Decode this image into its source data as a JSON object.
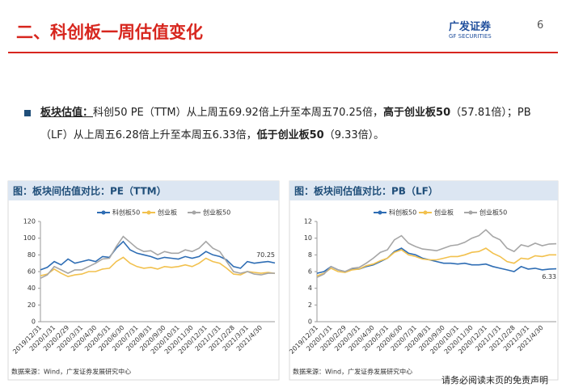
{
  "header": {
    "title": "二、科创板一周估值变化",
    "logo_cn": "广发证券",
    "logo_en": "GF SECURITIES",
    "page": "6"
  },
  "bullet": {
    "label": "板块估值：",
    "parts": [
      "科创50 PE（TTM）从上周五69.92倍上升至本周五70.25倍，",
      "高于创业板50",
      "（57.81倍）；PB（LF）从上周五6.28倍上升至本周五6.33倍，",
      "低于创业板50",
      "（9.33倍）。"
    ]
  },
  "chart_data": [
    {
      "type": "line",
      "title": "图：板块间估值对比：PE（TTM）",
      "source": "数据来源：Wind，广发证券发展研究中心",
      "annotation": "70.25",
      "categories": [
        "2019/12/31",
        null,
        "2020/1/31",
        null,
        "2020/2/29",
        null,
        "2020/3/31",
        null,
        "2020/4/30",
        null,
        "2020/5/31",
        null,
        "2020/6/30",
        null,
        "2020/7/31",
        null,
        "2020/8/31",
        null,
        "2020/9/30",
        null,
        "2020/10/31",
        null,
        "2020/11/30",
        null,
        "2020/12/31",
        null,
        "2021/1/31",
        null,
        "2021/2/28",
        null,
        "2021/3/31",
        null,
        "2021/4/30",
        null,
        null
      ],
      "ylim": [
        0,
        120
      ],
      "yticks": [
        0,
        20,
        40,
        60,
        80,
        100,
        120
      ],
      "series": [
        {
          "name": "科创板50",
          "color": "#2e6db4",
          "values": [
            62,
            65,
            72,
            68,
            75,
            70,
            72,
            74,
            72,
            78,
            77,
            88,
            96,
            86,
            82,
            80,
            78,
            75,
            77,
            76,
            75,
            78,
            76,
            78,
            84,
            80,
            78,
            74,
            66,
            64,
            72,
            70,
            71,
            72,
            70.25
          ]
        },
        {
          "name": "创业板",
          "color": "#f2c14e",
          "values": [
            55,
            57,
            63,
            58,
            54,
            56,
            57,
            60,
            60,
            63,
            64,
            72,
            77,
            70,
            66,
            64,
            65,
            63,
            66,
            65,
            66,
            68,
            66,
            70,
            76,
            72,
            70,
            64,
            57,
            56,
            60,
            59,
            58,
            59,
            57.81
          ]
        },
        {
          "name": "创业板50",
          "color": "#a6a6a6",
          "values": [
            52,
            56,
            66,
            62,
            58,
            62,
            62,
            66,
            70,
            75,
            76,
            90,
            102,
            95,
            88,
            84,
            85,
            80,
            84,
            82,
            82,
            86,
            84,
            88,
            96,
            88,
            84,
            72,
            60,
            58,
            60,
            57,
            56,
            58,
            58
          ]
        }
      ]
    },
    {
      "type": "line",
      "title": "图：板块间估值对比：PB（LF）",
      "source": "数据来源：Wind，广发证券发展研究中心",
      "annotation": "6.33",
      "categories": [
        "2019/12/31",
        null,
        "2020/1/31",
        null,
        "2020/2/29",
        null,
        "2020/3/31",
        null,
        "2020/4/30",
        null,
        "2020/5/31",
        null,
        "2020/6/30",
        null,
        "2020/7/31",
        null,
        "2020/8/31",
        null,
        "2020/9/30",
        null,
        "2020/10/31",
        null,
        "2020/11/30",
        null,
        "2020/12/31",
        null,
        "2021/1/31",
        null,
        "2021/2/28",
        null,
        "2021/3/31",
        null,
        "2021/4/30",
        null,
        null
      ],
      "ylim": [
        0,
        12
      ],
      "yticks": [
        0,
        2,
        4,
        6,
        8,
        10,
        12
      ],
      "series": [
        {
          "name": "科创板50",
          "color": "#2e6db4",
          "values": [
            5.8,
            6.0,
            6.6,
            6.2,
            6.0,
            6.3,
            6.3,
            6.6,
            6.8,
            7.2,
            7.6,
            8.4,
            8.8,
            8.2,
            8.0,
            7.6,
            7.4,
            7.2,
            7.0,
            7.0,
            6.9,
            7.0,
            6.8,
            6.8,
            6.9,
            6.6,
            6.4,
            6.2,
            6.0,
            6.6,
            6.3,
            6.4,
            6.2,
            6.3,
            6.33
          ]
        },
        {
          "name": "创业板",
          "color": "#f2c14e",
          "values": [
            5.5,
            5.8,
            6.4,
            6.0,
            5.9,
            6.2,
            6.3,
            6.7,
            6.9,
            7.3,
            7.6,
            8.3,
            8.6,
            8.0,
            7.8,
            7.5,
            7.4,
            7.4,
            7.6,
            7.8,
            7.8,
            8.0,
            8.3,
            8.4,
            8.8,
            8.2,
            7.8,
            7.2,
            7.0,
            7.6,
            7.5,
            7.9,
            7.8,
            8.0,
            8.0
          ]
        },
        {
          "name": "创业板50",
          "color": "#a6a6a6",
          "values": [
            5.3,
            5.7,
            6.6,
            6.2,
            6.0,
            6.4,
            6.5,
            7.0,
            7.6,
            8.3,
            8.6,
            9.8,
            10.3,
            9.4,
            9.0,
            8.7,
            8.6,
            8.5,
            8.8,
            9.1,
            9.2,
            9.5,
            10.0,
            10.3,
            11.0,
            10.2,
            9.8,
            8.8,
            8.4,
            9.2,
            9.0,
            9.4,
            9.1,
            9.3,
            9.33
          ]
        }
      ]
    }
  ]
}
